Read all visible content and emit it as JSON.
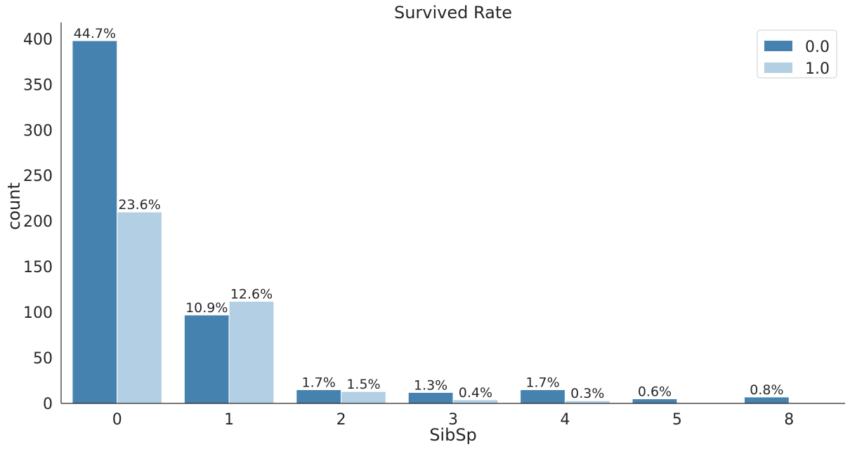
{
  "chart_data": {
    "type": "bar",
    "title": "Survived Rate",
    "xlabel": "SibSp",
    "ylabel": "count",
    "categories": [
      "0",
      "1",
      "2",
      "3",
      "4",
      "5",
      "8"
    ],
    "series": [
      {
        "name": "0.0",
        "color": "#4682b0",
        "values": [
          398,
          97,
          15,
          12,
          15,
          5,
          7
        ],
        "labels": [
          "44.7%",
          "10.9%",
          "1.7%",
          "1.3%",
          "1.7%",
          "0.6%",
          "0.8%"
        ]
      },
      {
        "name": "1.0",
        "color": "#b2cfe3",
        "values": [
          210,
          112,
          13,
          4,
          3,
          0,
          0
        ],
        "labels": [
          "23.6%",
          "12.6%",
          "1.5%",
          "0.4%",
          "0.3%",
          "",
          ""
        ]
      }
    ],
    "ylim": [
      0,
      418
    ],
    "yticks": [
      0,
      50,
      100,
      150,
      200,
      250,
      300,
      350,
      400
    ],
    "grid": false,
    "legend_position": "top-right"
  }
}
